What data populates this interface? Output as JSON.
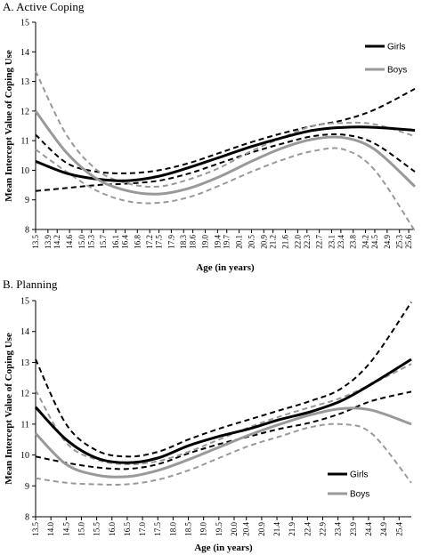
{
  "chart_data": [
    {
      "type": "line",
      "title": "A. Active Coping",
      "xlabel": "Age (in years)",
      "ylabel": "Mean Intercept Value of Coping Use",
      "ylim": [
        8,
        15
      ],
      "yticks": [
        "8",
        "9",
        "10",
        "11",
        "12",
        "13",
        "14",
        "15"
      ],
      "xlim": [
        13.5,
        25.8
      ],
      "xticks": [
        "13.5",
        "13.9",
        "14.2",
        "14.6",
        "15.0",
        "15.3",
        "15.7",
        "16.1",
        "16.4",
        "16.8",
        "17.2",
        "17.5",
        "17.9",
        "18.3",
        "18.6",
        "19.0",
        "19.4",
        "19.7",
        "20.1",
        "20.5",
        "20.9",
        "21.2",
        "21.6",
        "22.0",
        "22.3",
        "22.7",
        "23.1",
        "23.4",
        "23.8",
        "24.2",
        "24.5",
        "24.9",
        "25.3",
        "25.6"
      ],
      "grid": false,
      "legend": {
        "position": "top-right",
        "entries": [
          "Girls",
          "Boys"
        ]
      },
      "series": [
        {
          "name": "Girls",
          "role": "estimate",
          "color": "#000000",
          "dashed": false,
          "x": [
            13.5,
            14.5,
            15.5,
            16.5,
            17.5,
            18.5,
            19.5,
            20.5,
            21.5,
            22.5,
            23.5,
            24.5,
            25.8
          ],
          "y": [
            10.3,
            9.9,
            9.7,
            9.65,
            9.8,
            10.1,
            10.45,
            10.8,
            11.1,
            11.35,
            11.45,
            11.45,
            11.35
          ]
        },
        {
          "name": "Girls",
          "role": "upper-ci",
          "color": "#000000",
          "dashed": true,
          "x": [
            13.5,
            14.5,
            15.5,
            16.5,
            17.5,
            18.5,
            19.5,
            20.5,
            21.5,
            22.5,
            23.5,
            24.5,
            25.8
          ],
          "y": [
            11.2,
            10.25,
            9.95,
            9.9,
            10.0,
            10.25,
            10.6,
            10.95,
            11.25,
            11.5,
            11.7,
            12.05,
            12.75
          ]
        },
        {
          "name": "Girls",
          "role": "lower-ci",
          "color": "#000000",
          "dashed": true,
          "x": [
            13.5,
            14.5,
            15.5,
            16.5,
            17.5,
            18.5,
            19.5,
            20.5,
            21.5,
            22.5,
            23.5,
            24.5,
            25.8
          ],
          "y": [
            9.3,
            9.4,
            9.5,
            9.55,
            9.65,
            9.9,
            10.25,
            10.6,
            10.9,
            11.15,
            11.2,
            10.9,
            9.95
          ]
        },
        {
          "name": "Boys",
          "role": "estimate",
          "color": "#999999",
          "dashed": false,
          "x": [
            13.5,
            14.5,
            15.5,
            16.5,
            17.5,
            18.5,
            19.5,
            20.5,
            21.5,
            22.5,
            23.5,
            24.5,
            25.8
          ],
          "y": [
            12.0,
            10.6,
            9.7,
            9.3,
            9.2,
            9.4,
            9.8,
            10.3,
            10.75,
            11.05,
            11.1,
            10.7,
            9.45
          ]
        },
        {
          "name": "Boys",
          "role": "upper-ci",
          "color": "#999999",
          "dashed": true,
          "x": [
            13.5,
            14.5,
            15.5,
            16.5,
            17.5,
            18.5,
            19.5,
            20.5,
            21.5,
            22.5,
            23.5,
            24.5,
            25.8
          ],
          "y": [
            13.35,
            11.2,
            10.0,
            9.55,
            9.45,
            9.7,
            10.1,
            10.65,
            11.1,
            11.5,
            11.6,
            11.55,
            11.15
          ]
        },
        {
          "name": "Boys",
          "role": "lower-ci",
          "color": "#999999",
          "dashed": true,
          "x": [
            13.5,
            14.5,
            15.5,
            16.5,
            17.5,
            18.5,
            19.5,
            20.5,
            21.5,
            22.5,
            23.5,
            24.5,
            25.8
          ],
          "y": [
            10.7,
            9.95,
            9.3,
            8.95,
            8.9,
            9.1,
            9.5,
            9.95,
            10.35,
            10.65,
            10.7,
            10.0,
            7.95
          ]
        }
      ]
    },
    {
      "type": "line",
      "title": "B. Planning",
      "xlabel": "Age (in years)",
      "ylabel": "Mean Intercept Value of Coping Use",
      "ylim": [
        8,
        15
      ],
      "yticks": [
        "8",
        "9",
        "10",
        "11",
        "12",
        "13",
        "14",
        "15"
      ],
      "xlim": [
        13.5,
        25.8
      ],
      "xticks": [
        "13.5",
        "14.0",
        "14.5",
        "15.0",
        "15.5",
        "16.0",
        "16.5",
        "17.0",
        "17.5",
        "18.0",
        "18.5",
        "19.0",
        "19.5",
        "20.0",
        "20.4",
        "20.9",
        "21.4",
        "21.9",
        "22.4",
        "22.9",
        "23.4",
        "23.9",
        "24.4",
        "24.9",
        "25.4"
      ],
      "grid": false,
      "legend": {
        "position": "bottom-right",
        "entries": [
          "Girls",
          "Boys"
        ]
      },
      "series": [
        {
          "name": "Girls",
          "role": "estimate",
          "color": "#000000",
          "dashed": false,
          "x": [
            13.5,
            14.5,
            15.5,
            16.5,
            17.5,
            18.5,
            19.5,
            20.5,
            21.5,
            22.5,
            23.5,
            24.5,
            25.8
          ],
          "y": [
            11.55,
            10.5,
            9.9,
            9.75,
            9.9,
            10.3,
            10.6,
            10.85,
            11.15,
            11.4,
            11.75,
            12.3,
            13.1
          ]
        },
        {
          "name": "Girls",
          "role": "upper-ci",
          "color": "#000000",
          "dashed": true,
          "x": [
            13.5,
            14.5,
            15.5,
            16.5,
            17.5,
            18.5,
            19.5,
            20.5,
            21.5,
            22.5,
            23.5,
            24.5,
            25.8
          ],
          "y": [
            13.1,
            11.0,
            10.15,
            9.95,
            10.1,
            10.5,
            10.85,
            11.15,
            11.45,
            11.75,
            12.15,
            13.05,
            14.95
          ]
        },
        {
          "name": "Girls",
          "role": "lower-ci",
          "color": "#000000",
          "dashed": true,
          "x": [
            13.5,
            14.5,
            15.5,
            16.5,
            17.5,
            18.5,
            19.5,
            20.5,
            21.5,
            22.5,
            23.5,
            24.5,
            25.8
          ],
          "y": [
            9.95,
            9.75,
            9.6,
            9.55,
            9.7,
            10.05,
            10.35,
            10.6,
            10.85,
            11.05,
            11.35,
            11.75,
            12.05
          ]
        },
        {
          "name": "Boys",
          "role": "estimate",
          "color": "#999999",
          "dashed": false,
          "x": [
            13.5,
            14.5,
            15.5,
            16.5,
            17.5,
            18.5,
            19.5,
            20.5,
            21.5,
            22.5,
            23.5,
            24.5,
            25.8
          ],
          "y": [
            10.7,
            9.7,
            9.35,
            9.3,
            9.5,
            9.85,
            10.25,
            10.65,
            11.0,
            11.3,
            11.5,
            11.45,
            11.0
          ]
        },
        {
          "name": "Boys",
          "role": "upper-ci",
          "color": "#999999",
          "dashed": true,
          "x": [
            13.5,
            14.5,
            15.5,
            16.5,
            17.5,
            18.5,
            19.5,
            20.5,
            21.5,
            22.5,
            23.5,
            24.5,
            25.8
          ],
          "y": [
            12.1,
            10.4,
            9.85,
            9.7,
            9.8,
            10.1,
            10.5,
            10.9,
            11.25,
            11.55,
            11.85,
            12.3,
            12.95
          ]
        },
        {
          "name": "Boys",
          "role": "lower-ci",
          "color": "#999999",
          "dashed": true,
          "x": [
            13.5,
            14.5,
            15.5,
            16.5,
            17.5,
            18.5,
            19.5,
            20.5,
            21.5,
            22.5,
            23.5,
            24.5,
            25.8
          ],
          "y": [
            9.25,
            9.1,
            9.05,
            9.05,
            9.2,
            9.5,
            9.9,
            10.3,
            10.6,
            10.9,
            11.0,
            10.7,
            9.1
          ]
        }
      ]
    }
  ]
}
